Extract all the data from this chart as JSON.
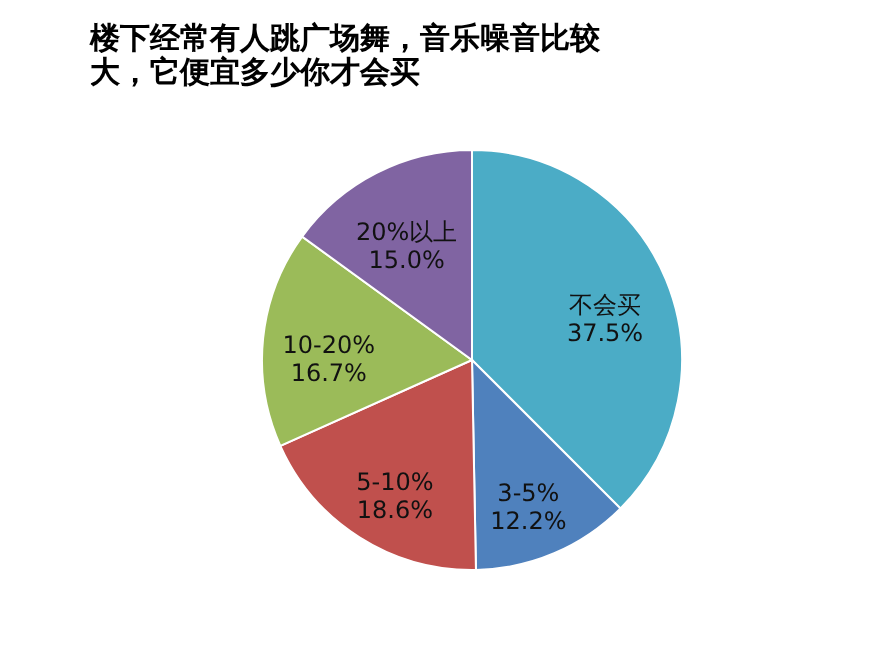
{
  "chart_data": {
    "type": "pie",
    "title": "楼下经常有人跳广场舞，音乐噪音比较大，它便宜多少你才会买",
    "categories": [
      "不会买",
      "3-5%",
      "5-10%",
      "10-20%",
      "20%以上"
    ],
    "values": [
      37.5,
      12.2,
      18.6,
      16.7,
      15.0
    ],
    "value_labels": [
      "37.5%",
      "12.2%",
      "18.6%",
      "16.7%",
      "15.0%"
    ],
    "colors": [
      "#4bacc6",
      "#4f81bd",
      "#c0504d",
      "#9bbb59",
      "#8064a2"
    ],
    "legend": false
  }
}
